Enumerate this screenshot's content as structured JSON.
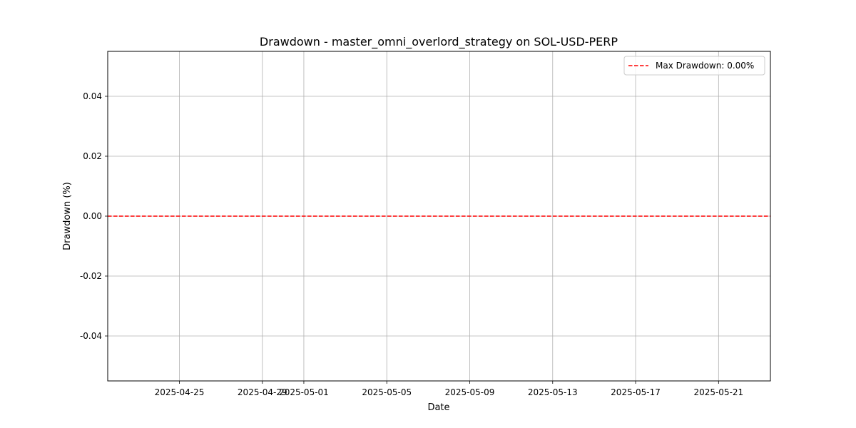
{
  "chart_data": {
    "type": "line",
    "title": "Drawdown - master_omni_overlord_strategy on SOL-USD-PERP",
    "xlabel": "Date",
    "ylabel": "Drawdown (%)",
    "x_ticks": [
      "2025-04-25",
      "2025-04-29",
      "2025-05-01",
      "2025-05-05",
      "2025-05-09",
      "2025-05-13",
      "2025-05-17",
      "2025-05-21"
    ],
    "xlim": [
      "2025-04-21T13:00",
      "2025-05-23T12:00"
    ],
    "y_ticks": [
      -0.04,
      -0.02,
      0.0,
      0.02,
      0.04
    ],
    "y_tick_labels": [
      "-0.04",
      "-0.02",
      "0.00",
      "0.02",
      "0.04"
    ],
    "ylim": [
      0.055,
      -0.055
    ],
    "y_axis_inverted": true,
    "grid": true,
    "series": [
      {
        "name": "Max Drawdown: 0.00%",
        "style": "dashed",
        "color": "#ff0000",
        "y": 0.0
      }
    ],
    "legend": {
      "placement": "top-right"
    }
  }
}
